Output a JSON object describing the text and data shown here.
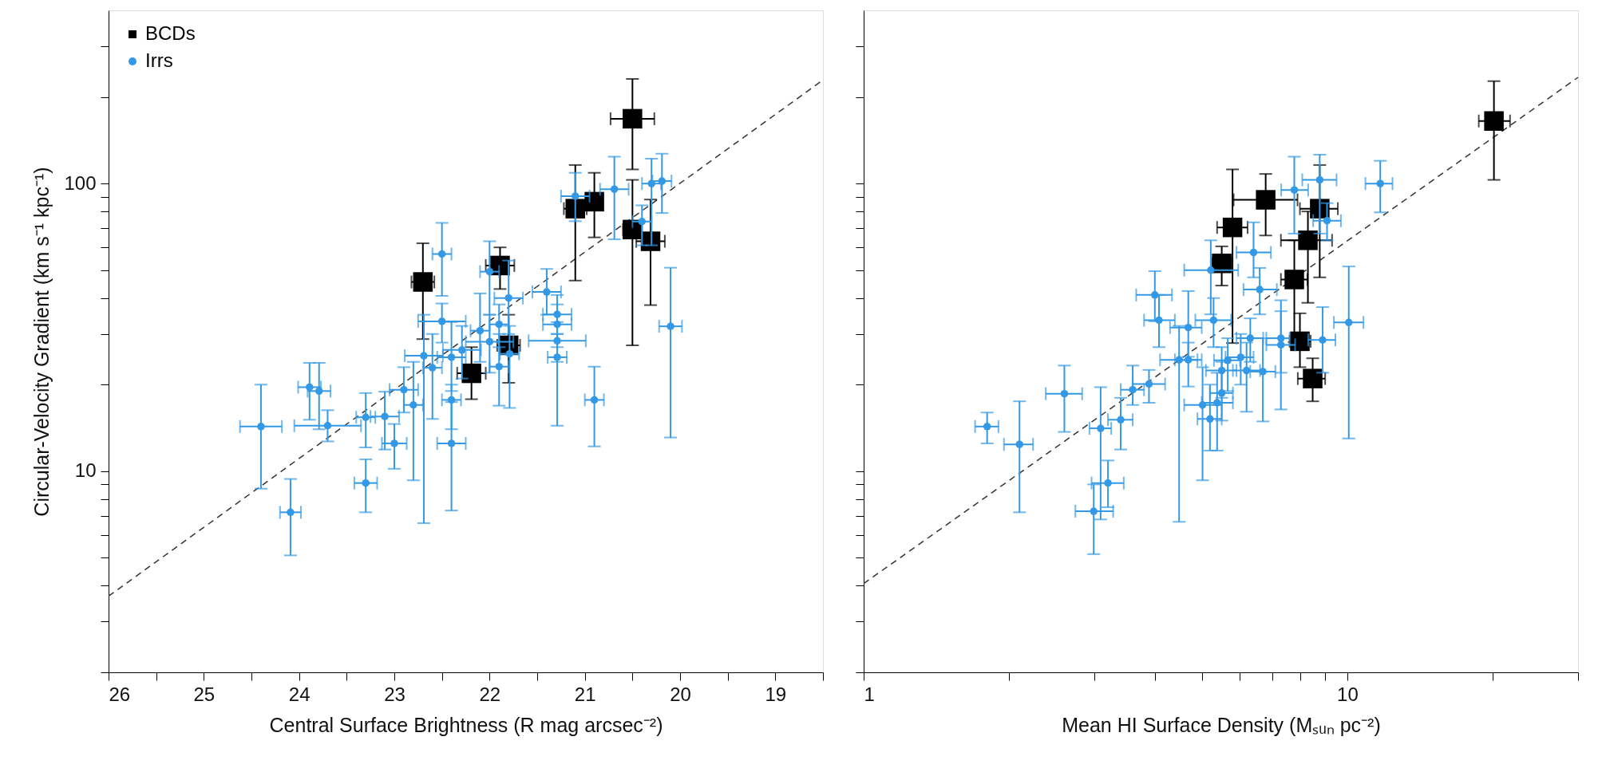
{
  "chart_data": [
    {
      "type": "scatter",
      "xlabel": "Central Surface Brightness (R mag arcsec⁻²)",
      "ylabel": "Circular-Velocity Gradient (km s⁻¹ kpc⁻¹)",
      "log": "y",
      "legend": "top left",
      "xlim": [
        26,
        18.5
      ],
      "ylim": [
        2,
        400
      ],
      "xticks": [
        26,
        {
          "value": 25.5,
          "label": null
        },
        25,
        {
          "value": 24.5,
          "label": null
        },
        24,
        {
          "value": 23.5,
          "label": null
        },
        23,
        {
          "value": 22.5,
          "label": null
        },
        22,
        {
          "value": 21.5,
          "label": null
        },
        21,
        {
          "value": 20.5,
          "label": null
        },
        20,
        {
          "value": 19.5,
          "label": null
        },
        19,
        {
          "value": 18.5,
          "label": null
        }
      ],
      "yticks": [
        {
          "value": 2,
          "label": null
        },
        {
          "value": 3,
          "label": null
        },
        {
          "value": 4,
          "label": null
        },
        {
          "value": 5,
          "label": null
        },
        {
          "value": 6,
          "label": null
        },
        {
          "value": 7,
          "label": null
        },
        {
          "value": 8,
          "label": null
        },
        {
          "value": 9,
          "label": null
        },
        10,
        {
          "value": 20,
          "label": null
        },
        {
          "value": 30,
          "label": null
        },
        {
          "value": 40,
          "label": null
        },
        {
          "value": 50,
          "label": null
        },
        {
          "value": 60,
          "label": null
        },
        {
          "value": 70,
          "label": null
        },
        {
          "value": 80,
          "label": null
        },
        {
          "value": 90,
          "label": null
        },
        100,
        {
          "value": 200,
          "label": null
        },
        {
          "value": 300,
          "label": null
        }
      ],
      "series": [
        {
          "type": "line",
          "color": "#333333",
          "line_style": "dashed",
          "x": [
            26,
            18.5
          ],
          "values": [
            3.68,
            229
          ]
        },
        {
          "name": "BCDs",
          "color": "#000000",
          "marker": "square",
          "x": [
            22.7,
            21.89,
            21.1,
            20.9,
            20.5,
            20.5,
            20.31,
            22.19,
            21.8
          ],
          "values": [
            45.5,
            51.9,
            81.8,
            86.5,
            168,
            69.2,
            63,
            21.9,
            27.4
          ],
          "xerrors": [
            0.12,
            0.15,
            0.12,
            0.06,
            0.23,
            0.1,
            0.15,
            0.15,
            0.12
          ],
          "errors": [
            [
              28.8,
              62
            ],
            [
              43,
              60
            ],
            [
              46,
              116
            ],
            [
              65,
              109
            ],
            [
              112,
              231
            ],
            [
              27.4,
              103
            ],
            [
              37.8,
              88
            ],
            [
              17.8,
              27
            ],
            [
              20.3,
              35
            ]
          ]
        },
        {
          "name": "Irrs",
          "color": "#3399e6",
          "marker": "circle",
          "x": [
            24.4,
            24.09,
            23.89,
            23.79,
            23.7,
            23.3,
            23.3,
            23.1,
            23.0,
            22.9,
            22.8,
            22.69,
            22.6,
            22.4,
            22.4,
            22.4,
            22.29,
            22.0,
            21.9,
            21.79,
            21.29,
            21.29,
            20.9,
            22.5,
            22.5,
            22.0,
            22.1,
            21.9,
            21.8,
            21.4,
            21.29,
            21.29,
            21.1,
            20.69,
            20.4,
            20.3,
            20.19,
            20.1
          ],
          "values": [
            14.3,
            7.2,
            19.6,
            19.0,
            14.4,
            15.4,
            9.1,
            15.5,
            12.5,
            19.2,
            17.0,
            25.2,
            22.9,
            17.7,
            12.5,
            24.9,
            26.4,
            28.2,
            23.1,
            25.6,
            28.4,
            24.9,
            17.7,
            56.9,
            33.2,
            49.4,
            30.8,
            32.4,
            40.0,
            42.0,
            35.1,
            32.4,
            90.4,
            95.6,
            73.8,
            100,
            102,
            31.9
          ],
          "xerrors": [
            0.22,
            0.11,
            0.12,
            0.12,
            0.35,
            0.1,
            0.12,
            0.15,
            0.13,
            0.15,
            0.1,
            0.2,
            0.1,
            0.1,
            0.15,
            0.15,
            0.2,
            0.25,
            0.1,
            0.1,
            0.3,
            0.1,
            0.1,
            0.1,
            0.25,
            0.1,
            0.1,
            0.1,
            0.15,
            0.15,
            0.15,
            0.15,
            0.15,
            0.15,
            0.1,
            0.1,
            0.1,
            0.12
          ],
          "errors": [
            [
              8.7,
              20
            ],
            [
              5.1,
              9.4
            ],
            [
              15.1,
              23.8
            ],
            [
              14.0,
              23.8
            ],
            [
              12.7,
              16.3
            ],
            [
              12.1,
              18.7
            ],
            [
              7.2,
              11.0
            ],
            [
              11.9,
              18.9
            ],
            [
              10.2,
              14.6
            ],
            [
              16,
              23
            ],
            [
              9.3,
              24
            ],
            [
              6.6,
              35
            ],
            [
              15.2,
              30
            ],
            [
              14.0,
              20
            ],
            [
              7.3,
              17.4
            ],
            [
              19,
              33
            ],
            [
              21,
              32
            ],
            [
              22,
              35
            ],
            [
              16.9,
              30
            ],
            [
              16.6,
              32
            ],
            [
              24,
              33
            ],
            [
              14.4,
              30
            ],
            [
              12.2,
              23.1
            ],
            [
              40.7,
              73
            ],
            [
              28,
              38.3
            ],
            [
              35,
              63
            ],
            [
              24,
              41.5
            ],
            [
              27,
              38
            ],
            [
              30,
              54
            ],
            [
              35,
              50.5
            ],
            [
              30,
              41
            ],
            [
              27,
              38
            ],
            [
              74,
              109
            ],
            [
              64,
              124
            ],
            [
              61,
              84
            ],
            [
              61,
              122
            ],
            [
              79,
              127
            ],
            [
              13.1,
              51
            ]
          ]
        }
      ]
    },
    {
      "type": "scatter",
      "xlabel": "Mean HI Surface Density (Mₛᵤₙ pc⁻²)",
      "log": "xy",
      "tick_labels": "x",
      "xlim": [
        1,
        30
      ],
      "ylim": [
        2,
        400
      ],
      "xticks": [
        1,
        {
          "value": 2,
          "label": null
        },
        {
          "value": 3,
          "label": null
        },
        {
          "value": 4,
          "label": null
        },
        {
          "value": 5,
          "label": null
        },
        {
          "value": 6,
          "label": null
        },
        {
          "value": 7,
          "label": null
        },
        {
          "value": 8,
          "label": null
        },
        {
          "value": 9,
          "label": null
        },
        10,
        {
          "value": 20,
          "label": null
        },
        {
          "value": 30,
          "label": null
        }
      ],
      "yticks": [
        {
          "value": 2,
          "label": null
        },
        {
          "value": 3,
          "label": null
        },
        {
          "value": 4,
          "label": null
        },
        {
          "value": 5,
          "label": null
        },
        {
          "value": 6,
          "label": null
        },
        {
          "value": 7,
          "label": null
        },
        {
          "value": 8,
          "label": null
        },
        {
          "value": 9,
          "label": null
        },
        {
          "value": 10,
          "label": null
        },
        {
          "value": 20,
          "label": null
        },
        {
          "value": 30,
          "label": null
        },
        {
          "value": 40,
          "label": null
        },
        {
          "value": 50,
          "label": null
        },
        {
          "value": 60,
          "label": null
        },
        {
          "value": 70,
          "label": null
        },
        {
          "value": 80,
          "label": null
        },
        {
          "value": 90,
          "label": null
        },
        {
          "value": 100,
          "label": null
        },
        {
          "value": 200,
          "label": null
        },
        {
          "value": 300,
          "label": null
        }
      ],
      "series": [
        {
          "type": "line",
          "color": "#333333",
          "line_style": "dashed",
          "x": [
            1,
            30
          ],
          "values": [
            4.07,
            234
          ]
        },
        {
          "name": "BCDs",
          "color": "#000000",
          "marker": "square",
          "x": [
            20.1,
            6.78,
            5.79,
            5.5,
            8.77,
            8.29,
            7.77,
            7.98,
            8.48
          ],
          "values": [
            165,
            87.8,
            70.4,
            52.8,
            81.8,
            63.5,
            46.4,
            28.3,
            21.0
          ],
          "xerrors": [
            [
              18.7,
              21.7
            ],
            [
              5.82,
              7.89
            ],
            [
              5.38,
              6.22
            ],
            [
              5.26,
              5.75
            ],
            [
              7.98,
              9.56
            ],
            [
              7.29,
              9.3
            ],
            [
              7.29,
              8.27
            ],
            [
              7.6,
              8.4
            ],
            [
              7.9,
              9.0
            ]
          ],
          "errors": [
            [
              103,
              227
            ],
            [
              66,
              108
            ],
            [
              27.9,
              112
            ],
            [
              44.2,
              60.5
            ],
            [
              47.2,
              116
            ],
            [
              38.5,
              80
            ],
            [
              28.1,
              63.5
            ],
            [
              23,
              35.4
            ],
            [
              17.5,
              24.7
            ]
          ]
        },
        {
          "name": "Irrs",
          "color": "#3399e6",
          "marker": "circle",
          "x": [
            11.7,
            8.77,
            7.77,
            9.08,
            5.22,
            6.4,
            6.59,
            4.0,
            4.08,
            4.69,
            5.29,
            10.07,
            8.89,
            7.29,
            6.3,
            1.8,
            2.1,
            2.6,
            3.09,
            3.2,
            2.99,
            3.4,
            3.6,
            3.89,
            4.49,
            4.69,
            5.02,
            5.2,
            5.38,
            5.5,
            5.5,
            5.66,
            6.02,
            6.19,
            6.69,
            7.29
          ],
          "values": [
            100,
            103,
            95,
            74.3,
            50,
            57.6,
            42.8,
            41.0,
            33.5,
            31.6,
            33.5,
            32.9,
            28.6,
            29,
            29,
            14.3,
            12.4,
            18.6,
            14.1,
            9.1,
            7.26,
            15.1,
            19.2,
            20.1,
            24.4,
            24.4,
            17.0,
            15.2,
            17.3,
            18.7,
            22.4,
            24.3,
            24.9,
            22.4,
            22.2,
            27.5
          ],
          "xerrors": [
            [
              10.9,
              12.4
            ],
            [
              8.07,
              9.5
            ],
            [
              7.3,
              8.3
            ],
            [
              8.5,
              9.7
            ],
            [
              4.6,
              5.95
            ],
            [
              5.9,
              6.95
            ],
            [
              6.1,
              7.15
            ],
            [
              3.66,
              4.34
            ],
            [
              3.8,
              4.4
            ],
            [
              4.3,
              5.0
            ],
            [
              4.85,
              5.75
            ],
            [
              9.38,
              10.8
            ],
            [
              8.3,
              9.45
            ],
            [
              6.8,
              7.6
            ],
            [
              5.9,
              6.7
            ],
            [
              1.7,
              1.9
            ],
            [
              1.95,
              2.24
            ],
            [
              2.38,
              2.83
            ],
            [
              2.93,
              3.25
            ],
            [
              2.96,
              3.45
            ],
            [
              2.74,
              3.28
            ],
            [
              3.2,
              3.6
            ],
            [
              3.4,
              3.8
            ],
            [
              3.6,
              4.2
            ],
            [
              4.1,
              4.9
            ],
            [
              4.4,
              5.0
            ],
            [
              4.6,
              5.5
            ],
            [
              4.9,
              5.5
            ],
            [
              5.0,
              5.8
            ],
            [
              5.2,
              5.8
            ],
            [
              5.1,
              5.9
            ],
            [
              5.3,
              6.0
            ],
            [
              5.6,
              6.4
            ],
            [
              5.8,
              6.6
            ],
            [
              6.3,
              7.1
            ],
            [
              6.8,
              7.8
            ]
          ],
          "errors": [
            [
              79.4,
              120
            ],
            [
              67,
              126
            ],
            [
              67,
              124
            ],
            [
              63.5,
              85.5
            ],
            [
              35.1,
              63.5
            ],
            [
              47.2,
              73.3
            ],
            [
              35.1,
              50.9
            ],
            [
              33.2,
              49.6
            ],
            [
              27,
              41
            ],
            [
              25,
              42.3
            ],
            [
              27,
              40
            ],
            [
              13.0,
              51.5
            ],
            [
              22,
              37.2
            ],
            [
              22,
              39.3
            ],
            [
              24,
              34
            ],
            [
              12.5,
              16.0
            ],
            [
              7.2,
              17.5
            ],
            [
              13.7,
              23.3
            ],
            [
              6.8,
              19.6
            ],
            [
              7.5,
              10.9
            ],
            [
              5.15,
              9.0
            ],
            [
              11.9,
              18.0
            ],
            [
              17.0,
              23.3
            ],
            [
              17.3,
              22.5
            ],
            [
              6.67,
              32
            ],
            [
              19.7,
              28
            ],
            [
              9.3,
              23
            ],
            [
              11.8,
              20
            ],
            [
              11.8,
              22
            ],
            [
              15,
              24
            ],
            [
              18,
              27
            ],
            [
              19,
              29
            ],
            [
              20,
              30
            ],
            [
              16.1,
              28
            ],
            [
              14.9,
              29
            ],
            [
              16.4,
              36
            ]
          ]
        }
      ]
    }
  ]
}
